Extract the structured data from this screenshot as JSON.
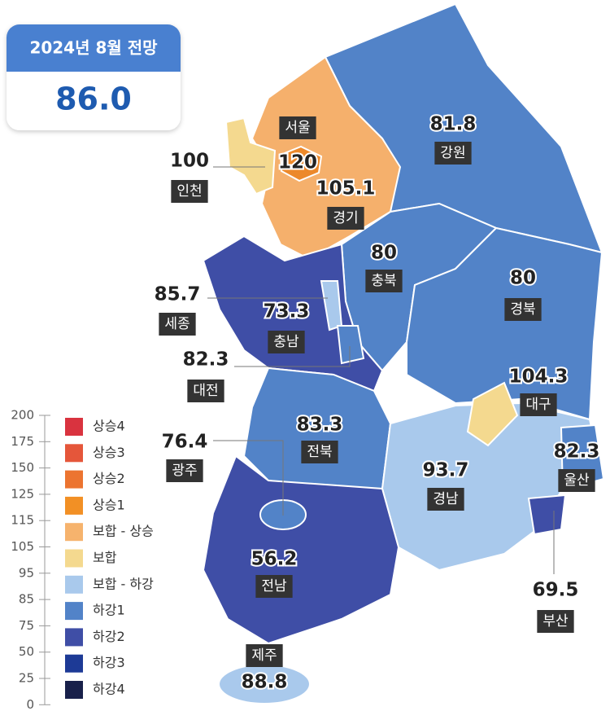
{
  "header": {
    "title": "2024년 8월 전망",
    "value": "86.0"
  },
  "regions": [
    {
      "name": "서울",
      "value": 120,
      "color": "#ec892b"
    },
    {
      "name": "인천",
      "value": 100,
      "color": "#f4d98f"
    },
    {
      "name": "경기",
      "value": 105.1,
      "color": "#f5b06c"
    },
    {
      "name": "강원",
      "value": 81.8,
      "color": "#5283c8"
    },
    {
      "name": "충북",
      "value": 80,
      "color": "#5283c8"
    },
    {
      "name": "경북",
      "value": 80,
      "color": "#5283c8"
    },
    {
      "name": "세종",
      "value": 85.7,
      "color": "#a9c9ec"
    },
    {
      "name": "충남",
      "value": 73.3,
      "color": "#3f4ea6"
    },
    {
      "name": "대전",
      "value": 82.3,
      "color": "#5283c8"
    },
    {
      "name": "대구",
      "value": 104.3,
      "color": "#f4d98f"
    },
    {
      "name": "전북",
      "value": 83.3,
      "color": "#5283c8"
    },
    {
      "name": "울산",
      "value": 82.3,
      "color": "#5283c8"
    },
    {
      "name": "광주",
      "value": 76.4,
      "color": "#5283c8"
    },
    {
      "name": "경남",
      "value": 93.7,
      "color": "#a9c9ec"
    },
    {
      "name": "전남",
      "value": 56.2,
      "color": "#3f4ea6"
    },
    {
      "name": "부산",
      "value": 69.5,
      "color": "#3f4ea6"
    },
    {
      "name": "제주",
      "value": 88.8,
      "color": "#a9c9ec"
    }
  ],
  "legend": {
    "scale_ticks": [
      200,
      175,
      150,
      125,
      115,
      105,
      95,
      85,
      75,
      50,
      25,
      0
    ],
    "classes": [
      {
        "label": "상승4",
        "color": "#d9333f"
      },
      {
        "label": "상승3",
        "color": "#e5563a"
      },
      {
        "label": "상승2",
        "color": "#ec7430"
      },
      {
        "label": "상승1",
        "color": "#f29025"
      },
      {
        "label": "보합 - 상승",
        "color": "#f6b36d"
      },
      {
        "label": "보합",
        "color": "#f4d98f"
      },
      {
        "label": "보합 - 하강",
        "color": "#a9c9ec"
      },
      {
        "label": "하강1",
        "color": "#5283c8"
      },
      {
        "label": "하강2",
        "color": "#3f4ea6"
      },
      {
        "label": "하강3",
        "color": "#1d3a96"
      },
      {
        "label": "하강4",
        "color": "#18204a"
      }
    ]
  }
}
